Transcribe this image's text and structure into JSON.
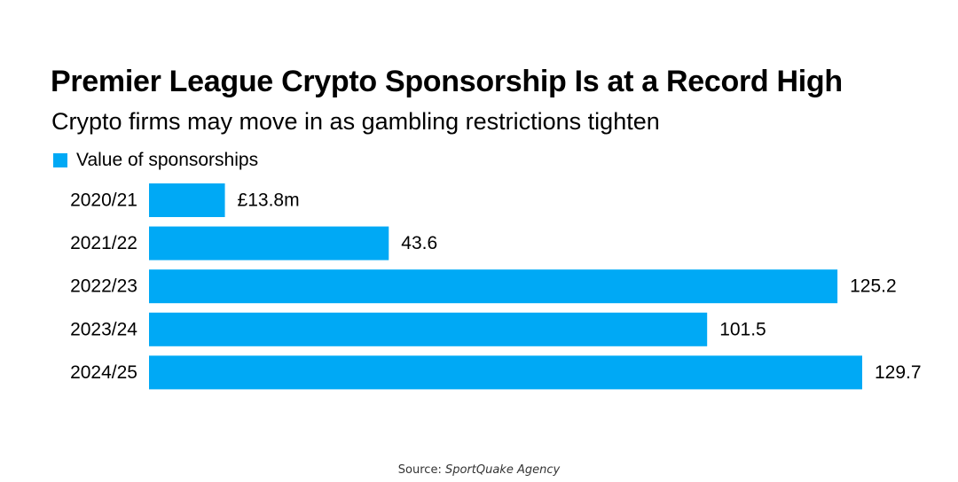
{
  "chart_data": {
    "type": "bar",
    "orientation": "horizontal",
    "title": "Premier League Crypto Sponsorship Is at a Record High",
    "subtitle": "Crypto firms may move in as gambling restrictions tighten",
    "categories": [
      "2020/21",
      "2021/22",
      "2022/23",
      "2023/24",
      "2024/25"
    ],
    "series": [
      {
        "name": "Value of sponsorships",
        "values": [
          13.8,
          43.6,
          125.2,
          101.5,
          129.7
        ],
        "labels": [
          "£13.8m",
          "43.6",
          "125.2",
          "101.5",
          "129.7"
        ],
        "color": "#00A9F5"
      }
    ],
    "xlim": [
      0,
      129.7
    ],
    "grid": false,
    "legend_position": "top-left"
  },
  "source": {
    "prefix": "Source:",
    "name": "SportQuake Agency"
  }
}
